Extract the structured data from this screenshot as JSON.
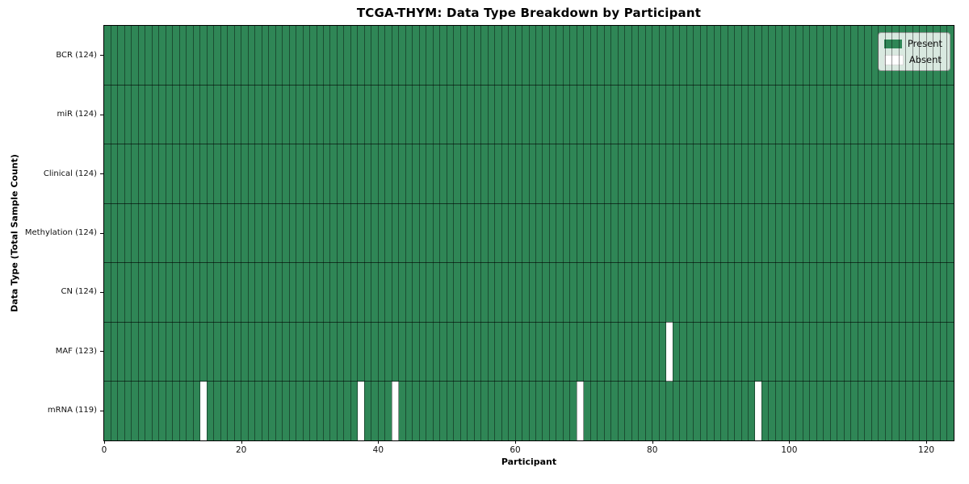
{
  "chart_data": {
    "type": "heatmap",
    "title": "TCGA-THYM: Data Type Breakdown by Participant",
    "xlabel": "Participant",
    "ylabel": "Data Type (Total Sample Count)",
    "x_ticks": [
      0,
      20,
      40,
      60,
      80,
      100,
      120
    ],
    "xlim": [
      0,
      124
    ],
    "n_participants": 124,
    "rows": [
      {
        "label": "BCR (124)",
        "data_type": "BCR",
        "present_count": 124,
        "absent_participants": []
      },
      {
        "label": "miR (124)",
        "data_type": "miR",
        "present_count": 124,
        "absent_participants": []
      },
      {
        "label": "Clinical (124)",
        "data_type": "Clinical",
        "present_count": 124,
        "absent_participants": []
      },
      {
        "label": "Methylation (124)",
        "data_type": "Methylation",
        "present_count": 124,
        "absent_participants": []
      },
      {
        "label": "CN (124)",
        "data_type": "CN",
        "present_count": 124,
        "absent_participants": []
      },
      {
        "label": "MAF (123)",
        "data_type": "MAF",
        "present_count": 123,
        "absent_participants": [
          82
        ]
      },
      {
        "label": "mRNA (119)",
        "data_type": "mRNA",
        "present_count": 119,
        "absent_participants": [
          14,
          37,
          42,
          69,
          95
        ]
      }
    ],
    "legend": {
      "position": "upper-right",
      "entries": [
        {
          "label": "Present",
          "color": "#2f8656"
        },
        {
          "label": "Absent",
          "color": "#ffffff"
        }
      ]
    },
    "colors": {
      "present": "#2f8656",
      "absent": "#ffffff",
      "cell_edge": "rgba(0,0,0,0.42)",
      "row_edge": "rgba(0,0,0,0.60)",
      "spine": "#000000"
    },
    "grid": true
  }
}
